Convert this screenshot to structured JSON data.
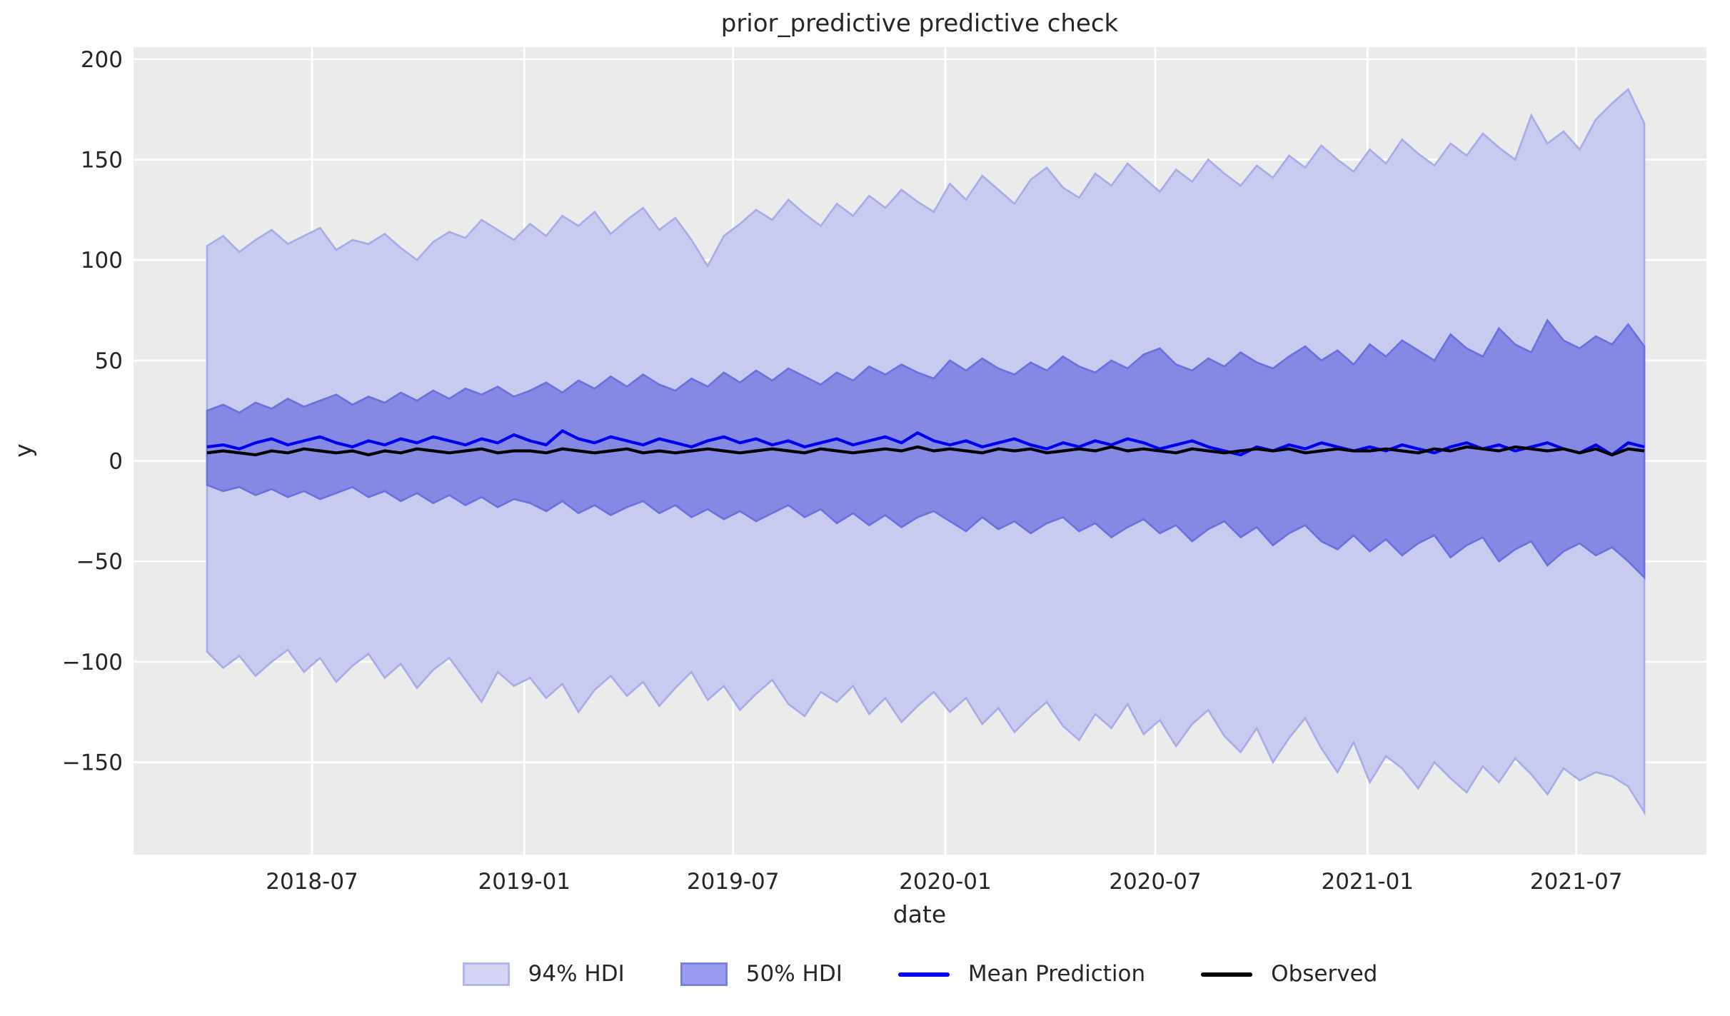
{
  "colors": {
    "figure_bg": "#ffffff",
    "axes_bg": "#ebebeb",
    "grid": "#ffffff",
    "text": "#262626",
    "band94_fill": "#c8caef",
    "band94_edge": "#a9ade7",
    "band50_fill": "#8589e4",
    "band50_edge": "#6b71dd",
    "mean_line": "#0000f0",
    "observed_line": "#000000",
    "legend94_fill": "#d4d5f5",
    "legend94_edge": "#b3b5ee",
    "legend50_fill": "#989bee",
    "legend50_edge": "#7a7fe3"
  },
  "legend": {
    "items": [
      {
        "label": "94% HDI",
        "type": "patch",
        "fill": "#d4d5f5",
        "edge": "#b3b5ee",
        "name": "legend-item-94-hdi"
      },
      {
        "label": "50% HDI",
        "type": "patch",
        "fill": "#989bee",
        "edge": "#7a7fe3",
        "name": "legend-item-50-hdi"
      },
      {
        "label": "Mean Prediction",
        "type": "line",
        "color": "#0000f0",
        "name": "legend-item-mean-prediction"
      },
      {
        "label": "Observed",
        "type": "line",
        "color": "#000000",
        "name": "legend-item-observed"
      }
    ]
  },
  "chart_data": {
    "type": "line",
    "title": "prior_predictive predictive check",
    "xlabel": "date",
    "ylabel": "y",
    "style": "seaborn-darkgrid",
    "grid": true,
    "ylim": [
      -196,
      206
    ],
    "y_ticks": [
      200,
      150,
      100,
      50,
      0,
      -50,
      -100,
      -150
    ],
    "x_ticks": [
      {
        "date": "2018-07-01",
        "label": "2018-07"
      },
      {
        "date": "2019-01-01",
        "label": "2019-01"
      },
      {
        "date": "2019-07-01",
        "label": "2019-07"
      },
      {
        "date": "2020-01-01",
        "label": "2020-01"
      },
      {
        "date": "2020-07-01",
        "label": "2020-07"
      },
      {
        "date": "2021-01-01",
        "label": "2021-01"
      },
      {
        "date": "2021-07-01",
        "label": "2021-07"
      }
    ],
    "x_start": "2018-04-01",
    "x_end": "2021-08-29",
    "dates": [
      "2018-04-01",
      "2018-04-15",
      "2018-04-29",
      "2018-05-13",
      "2018-05-27",
      "2018-06-10",
      "2018-06-24",
      "2018-07-08",
      "2018-07-22",
      "2018-08-05",
      "2018-08-19",
      "2018-09-02",
      "2018-09-16",
      "2018-09-30",
      "2018-10-14",
      "2018-10-28",
      "2018-11-11",
      "2018-11-25",
      "2018-12-09",
      "2018-12-23",
      "2019-01-06",
      "2019-01-20",
      "2019-02-03",
      "2019-02-17",
      "2019-03-03",
      "2019-03-17",
      "2019-03-31",
      "2019-04-14",
      "2019-04-28",
      "2019-05-12",
      "2019-05-26",
      "2019-06-09",
      "2019-06-23",
      "2019-07-07",
      "2019-07-21",
      "2019-08-04",
      "2019-08-18",
      "2019-09-01",
      "2019-09-15",
      "2019-09-29",
      "2019-10-13",
      "2019-10-27",
      "2019-11-10",
      "2019-11-24",
      "2019-12-08",
      "2019-12-22",
      "2020-01-05",
      "2020-01-19",
      "2020-02-02",
      "2020-02-16",
      "2020-03-01",
      "2020-03-15",
      "2020-03-29",
      "2020-04-12",
      "2020-04-26",
      "2020-05-10",
      "2020-05-24",
      "2020-06-07",
      "2020-06-21",
      "2020-07-05",
      "2020-07-19",
      "2020-08-02",
      "2020-08-16",
      "2020-08-30",
      "2020-09-13",
      "2020-09-27",
      "2020-10-11",
      "2020-10-25",
      "2020-11-08",
      "2020-11-22",
      "2020-12-06",
      "2020-12-20",
      "2021-01-03",
      "2021-01-17",
      "2021-01-31",
      "2021-02-14",
      "2021-02-28",
      "2021-03-14",
      "2021-03-28",
      "2021-04-11",
      "2021-04-25",
      "2021-05-09",
      "2021-05-23",
      "2021-06-06",
      "2021-06-20",
      "2021-07-04",
      "2021-07-18",
      "2021-08-01",
      "2021-08-15",
      "2021-08-29"
    ],
    "bands": [
      {
        "name": "94% HDI",
        "upper": [
          107,
          112,
          104,
          110,
          115,
          108,
          112,
          116,
          105,
          110,
          108,
          113,
          106,
          100,
          109,
          114,
          111,
          120,
          115,
          110,
          118,
          112,
          122,
          117,
          124,
          113,
          120,
          126,
          115,
          121,
          110,
          97,
          112,
          118,
          125,
          120,
          130,
          123,
          117,
          128,
          122,
          132,
          126,
          135,
          129,
          124,
          138,
          130,
          142,
          135,
          128,
          140,
          146,
          136,
          131,
          143,
          137,
          148,
          141,
          134,
          145,
          139,
          150,
          143,
          137,
          147,
          141,
          152,
          146,
          157,
          150,
          144,
          155,
          148,
          160,
          153,
          147,
          158,
          152,
          163,
          156,
          150,
          172,
          158,
          164,
          155,
          170,
          178,
          185,
          168
        ],
        "lower": [
          -95,
          -103,
          -97,
          -107,
          -100,
          -94,
          -105,
          -98,
          -110,
          -102,
          -96,
          -108,
          -101,
          -113,
          -104,
          -98,
          -109,
          -120,
          -105,
          -112,
          -108,
          -118,
          -111,
          -125,
          -114,
          -107,
          -117,
          -110,
          -122,
          -113,
          -105,
          -119,
          -112,
          -124,
          -116,
          -109,
          -121,
          -127,
          -115,
          -120,
          -112,
          -126,
          -118,
          -130,
          -122,
          -115,
          -125,
          -118,
          -131,
          -123,
          -135,
          -127,
          -120,
          -132,
          -139,
          -126,
          -133,
          -121,
          -136,
          -129,
          -142,
          -131,
          -124,
          -137,
          -145,
          -133,
          -150,
          -138,
          -128,
          -143,
          -155,
          -140,
          -160,
          -147,
          -153,
          -163,
          -150,
          -158,
          -165,
          -152,
          -160,
          -148,
          -156,
          -166,
          -153,
          -159,
          -155,
          -157,
          -162,
          -175
        ]
      },
      {
        "name": "50% HDI",
        "upper": [
          25,
          28,
          24,
          29,
          26,
          31,
          27,
          30,
          33,
          28,
          32,
          29,
          34,
          30,
          35,
          31,
          36,
          33,
          37,
          32,
          35,
          39,
          34,
          40,
          36,
          42,
          37,
          43,
          38,
          35,
          41,
          37,
          44,
          39,
          45,
          40,
          46,
          42,
          38,
          44,
          40,
          47,
          43,
          48,
          44,
          41,
          50,
          45,
          51,
          46,
          43,
          49,
          45,
          52,
          47,
          44,
          50,
          46,
          53,
          56,
          48,
          45,
          51,
          47,
          54,
          49,
          46,
          52,
          57,
          50,
          55,
          48,
          58,
          52,
          60,
          55,
          50,
          63,
          56,
          52,
          66,
          58,
          54,
          70,
          60,
          56,
          62,
          58,
          68,
          57
        ],
        "lower": [
          -12,
          -15,
          -13,
          -17,
          -14,
          -18,
          -15,
          -19,
          -16,
          -13,
          -18,
          -15,
          -20,
          -16,
          -21,
          -17,
          -22,
          -18,
          -23,
          -19,
          -21,
          -25,
          -20,
          -26,
          -22,
          -27,
          -23,
          -20,
          -26,
          -22,
          -28,
          -24,
          -29,
          -25,
          -30,
          -26,
          -22,
          -28,
          -24,
          -31,
          -26,
          -32,
          -27,
          -33,
          -28,
          -25,
          -30,
          -35,
          -28,
          -34,
          -30,
          -36,
          -31,
          -28,
          -35,
          -31,
          -38,
          -33,
          -29,
          -36,
          -32,
          -40,
          -34,
          -30,
          -38,
          -33,
          -42,
          -36,
          -32,
          -40,
          -44,
          -37,
          -45,
          -39,
          -47,
          -41,
          -37,
          -48,
          -42,
          -38,
          -50,
          -44,
          -40,
          -52,
          -45,
          -41,
          -47,
          -43,
          -50,
          -58
        ]
      }
    ],
    "lines": [
      {
        "name": "Mean Prediction",
        "values": [
          7,
          8,
          6,
          9,
          11,
          8,
          10,
          12,
          9,
          7,
          10,
          8,
          11,
          9,
          12,
          10,
          8,
          11,
          9,
          13,
          10,
          8,
          15,
          11,
          9,
          12,
          10,
          8,
          11,
          9,
          7,
          10,
          12,
          9,
          11,
          8,
          10,
          7,
          9,
          11,
          8,
          10,
          12,
          9,
          14,
          10,
          8,
          10,
          7,
          9,
          11,
          8,
          6,
          9,
          7,
          10,
          8,
          11,
          9,
          6,
          8,
          10,
          7,
          5,
          3,
          7,
          5,
          8,
          6,
          9,
          7,
          5,
          7,
          5,
          8,
          6,
          4,
          7,
          9,
          6,
          8,
          5,
          7,
          9,
          6,
          4,
          8,
          3,
          9,
          7
        ]
      },
      {
        "name": "Observed",
        "values": [
          4,
          5,
          4,
          3,
          5,
          4,
          6,
          5,
          4,
          5,
          3,
          5,
          4,
          6,
          5,
          4,
          5,
          6,
          4,
          5,
          5,
          4,
          6,
          5,
          4,
          5,
          6,
          4,
          5,
          4,
          5,
          6,
          5,
          4,
          5,
          6,
          5,
          4,
          6,
          5,
          4,
          5,
          6,
          5,
          7,
          5,
          6,
          5,
          4,
          6,
          5,
          6,
          4,
          5,
          6,
          5,
          7,
          5,
          6,
          5,
          4,
          6,
          5,
          4,
          5,
          6,
          5,
          6,
          4,
          5,
          6,
          5,
          5,
          6,
          5,
          4,
          6,
          5,
          7,
          6,
          5,
          7,
          6,
          5,
          6,
          4,
          6,
          3,
          6,
          5
        ]
      }
    ]
  }
}
